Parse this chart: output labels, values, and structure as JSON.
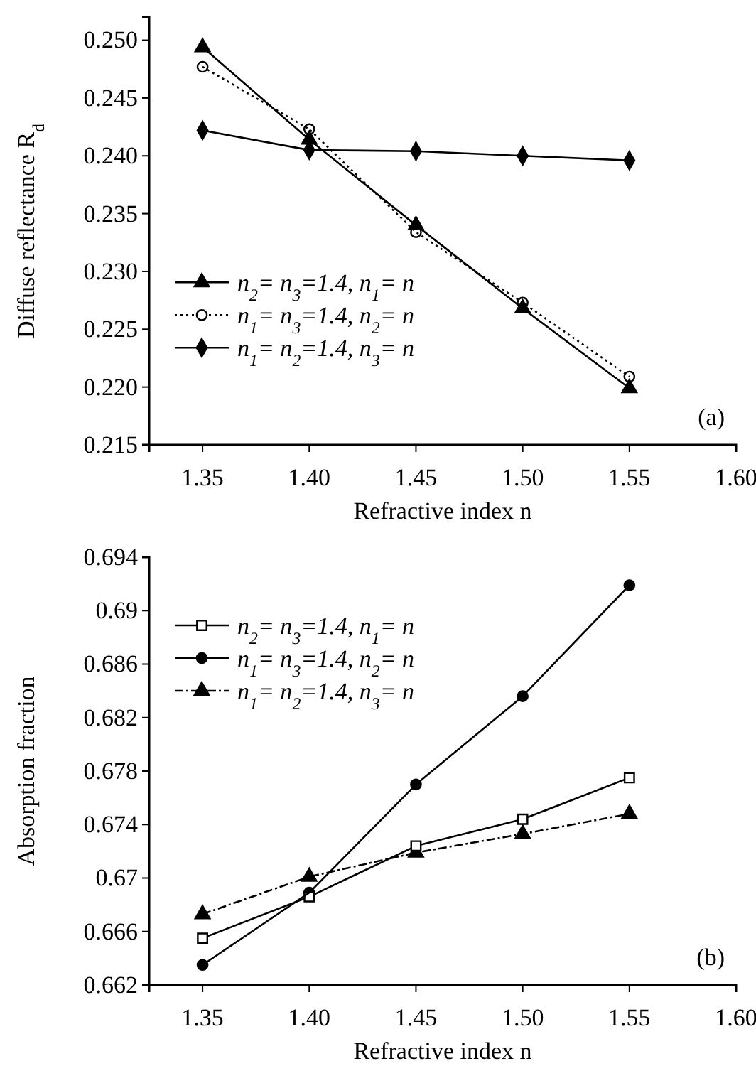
{
  "chart_data": [
    {
      "type": "line",
      "xlabel": "Refractive index n",
      "ylabel": "Diffuse reflectance R$_{d}$",
      "x": [
        1.35,
        1.4,
        1.45,
        1.5,
        1.55
      ],
      "xlim": [
        1.325,
        1.6
      ],
      "xticks": [
        {
          "value": 1.35,
          "label": "1.35"
        },
        {
          "value": 1.4,
          "label": "1.40"
        },
        {
          "value": 1.45,
          "label": "1.45"
        },
        {
          "value": 1.5,
          "label": "1.50"
        },
        {
          "value": 1.55,
          "label": "1.55"
        },
        {
          "value": 1.6,
          "label": "1.60"
        }
      ],
      "ylim": [
        0.215,
        0.252
      ],
      "yticks": [
        {
          "value": 0.215,
          "label": "0.215"
        },
        {
          "value": 0.22,
          "label": "0.220"
        },
        {
          "value": 0.225,
          "label": "0.225"
        },
        {
          "value": 0.23,
          "label": "0.230"
        },
        {
          "value": 0.235,
          "label": "0.235"
        },
        {
          "value": 0.24,
          "label": "0.240"
        },
        {
          "value": 0.245,
          "label": "0.245"
        },
        {
          "value": 0.25,
          "label": "0.250"
        }
      ],
      "legend": "left",
      "annotations": [
        "(a)"
      ],
      "series": [
        {
          "name": "n$_{2}$= n$_{3}$=1.4, n$_{1}$= n",
          "color": "#000000",
          "marker": "triangle",
          "line_style": "solid",
          "values": [
            0.2494,
            0.2414,
            0.234,
            0.2268,
            0.2199
          ]
        },
        {
          "name": "n$_{1}$= n$_{3}$=1.4, n$_{2}$= n",
          "color": "#000000",
          "marker": "circle",
          "line_style": "dotted",
          "values": [
            0.2477,
            0.2423,
            0.2334,
            0.2273,
            0.2209
          ]
        },
        {
          "name": "n$_{1}$= n$_{2}$=1.4, n$_{3}$= n",
          "color": "#000000",
          "marker": "diamond",
          "line_style": "solid",
          "values": [
            0.2422,
            0.2405,
            0.2404,
            0.24,
            0.2396
          ]
        }
      ]
    },
    {
      "type": "line",
      "xlabel": "Refractive index n",
      "ylabel": "Absorption fraction",
      "x": [
        1.35,
        1.4,
        1.45,
        1.5,
        1.55
      ],
      "xlim": [
        1.325,
        1.6
      ],
      "xticks": [
        {
          "value": 1.35,
          "label": "1.35"
        },
        {
          "value": 1.4,
          "label": "1.40"
        },
        {
          "value": 1.45,
          "label": "1.45"
        },
        {
          "value": 1.5,
          "label": "1.50"
        },
        {
          "value": 1.55,
          "label": "1.55"
        },
        {
          "value": 1.6,
          "label": "1.60"
        }
      ],
      "ylim": [
        0.662,
        0.694
      ],
      "yticks": [
        0.662,
        0.666,
        0.67,
        0.674,
        0.678,
        0.682,
        0.686,
        0.69,
        0.694
      ],
      "legend": "top left",
      "annotations": [
        "(b)"
      ],
      "series": [
        {
          "name": "n$_{2}$= n$_{3}$=1.4, n$_{1}$= n",
          "color": "#000000",
          "marker": "square",
          "line_style": "solid",
          "values": [
            0.6655,
            0.6686,
            0.6724,
            0.6744,
            0.6775
          ]
        },
        {
          "name": "n$_{1}$= n$_{3}$=1.4, n$_{2}$= n",
          "color": "#000000",
          "marker": "circle",
          "line_style": "solid",
          "values": [
            0.6635,
            0.6689,
            0.677,
            0.6836,
            0.6919
          ]
        },
        {
          "name": "n$_{1}$= n$_{2}$=1.4, n$_{3}$= n",
          "color": "#000000",
          "marker": "triangle",
          "line_style": "dashed",
          "values": [
            0.6673,
            0.6701,
            0.6719,
            0.6733,
            0.6748
          ]
        }
      ]
    }
  ]
}
